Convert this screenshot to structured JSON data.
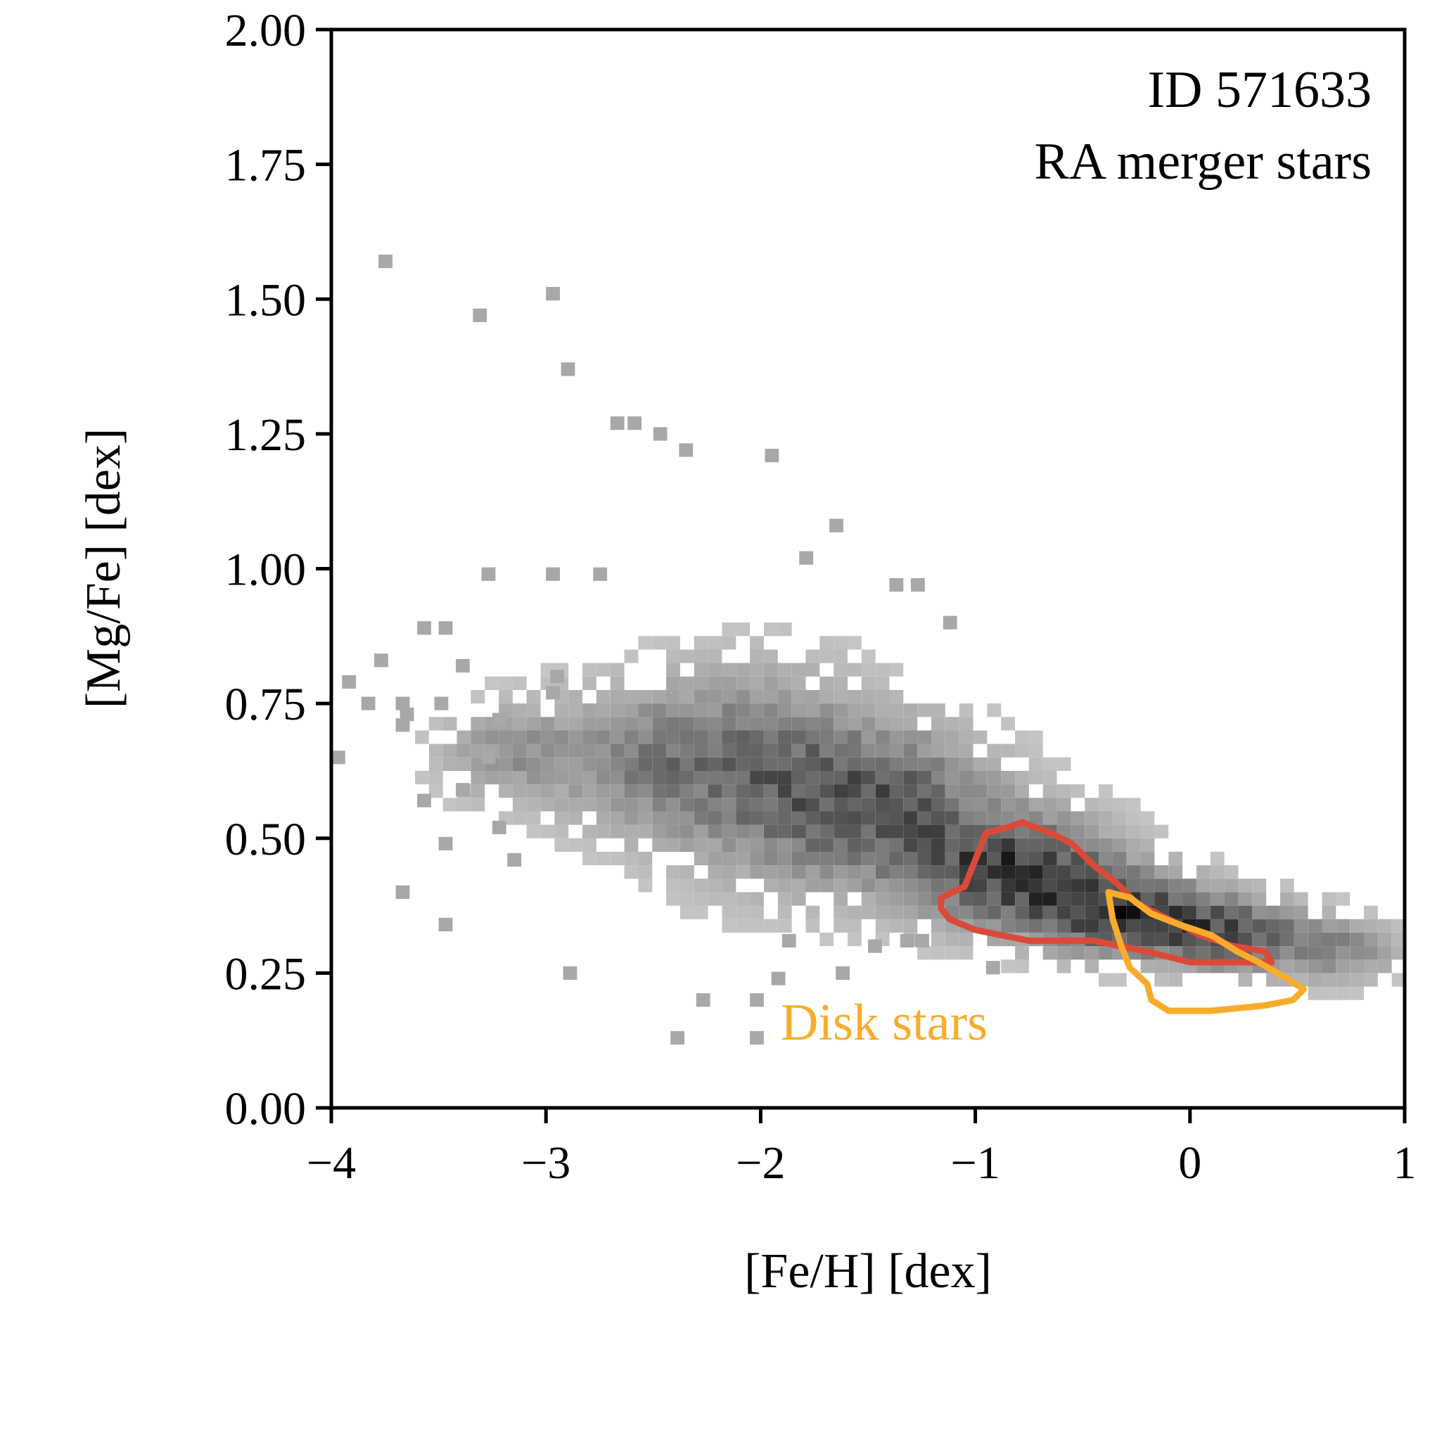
{
  "chart_data": {
    "type": "heatmap",
    "annotation_lines": [
      "ID 571633",
      "RA merger stars"
    ],
    "xlabel": "[Fe/H] [dex]",
    "ylabel": "[Mg/Fe] [dex]",
    "xlim": [
      -4,
      1
    ],
    "ylim": [
      0,
      2
    ],
    "x_ticks": [
      -4,
      -3,
      -2,
      -1,
      0,
      1
    ],
    "x_tick_labels": [
      "−4",
      "−3",
      "−2",
      "−1",
      "0",
      "1"
    ],
    "y_ticks": [
      0,
      0.25,
      0.5,
      0.75,
      1.0,
      1.25,
      1.5,
      1.75,
      2.0
    ],
    "y_tick_labels": [
      "0.00",
      "0.25",
      "0.50",
      "0.75",
      "1.00",
      "1.25",
      "1.50",
      "1.75",
      "2.00"
    ],
    "grid": false,
    "colormap": "greys",
    "density_ridge": [
      {
        "x": -3.2,
        "y": 0.66,
        "sx": 0.22,
        "sy": 0.06,
        "w": 0.35
      },
      {
        "x": -2.6,
        "y": 0.65,
        "sx": 0.32,
        "sy": 0.09,
        "w": 0.45
      },
      {
        "x": -2.0,
        "y": 0.62,
        "sx": 0.35,
        "sy": 0.13,
        "w": 0.6
      },
      {
        "x": -1.4,
        "y": 0.56,
        "sx": 0.35,
        "sy": 0.1,
        "w": 0.75
      },
      {
        "x": -0.8,
        "y": 0.44,
        "sx": 0.32,
        "sy": 0.07,
        "w": 1.0
      },
      {
        "x": -0.3,
        "y": 0.36,
        "sx": 0.28,
        "sy": 0.05,
        "w": 1.0
      },
      {
        "x": 0.2,
        "y": 0.32,
        "sx": 0.25,
        "sy": 0.045,
        "w": 0.8
      },
      {
        "x": 0.7,
        "y": 0.29,
        "sx": 0.2,
        "sy": 0.04,
        "w": 0.45
      }
    ],
    "scatter_bins": [
      [
        -3.78,
        1.57
      ],
      [
        -3.0,
        1.51
      ],
      [
        -3.34,
        1.47
      ],
      [
        -2.93,
        1.37
      ],
      [
        -2.7,
        1.27
      ],
      [
        -2.62,
        1.27
      ],
      [
        -2.5,
        1.25
      ],
      [
        -2.38,
        1.22
      ],
      [
        -1.98,
        1.21
      ],
      [
        -1.68,
        1.08
      ],
      [
        -1.82,
        1.02
      ],
      [
        -3.3,
        0.99
      ],
      [
        -3.0,
        0.99
      ],
      [
        -2.78,
        0.99
      ],
      [
        -3.6,
        0.89
      ],
      [
        -3.5,
        0.89
      ],
      [
        -3.8,
        0.83
      ],
      [
        -3.42,
        0.82
      ],
      [
        -3.95,
        0.79
      ],
      [
        -3.86,
        0.75
      ],
      [
        -3.7,
        0.75
      ],
      [
        -3.52,
        0.75
      ],
      [
        -3.68,
        0.73
      ],
      [
        -3.7,
        0.71
      ],
      [
        -3.25,
        0.72
      ],
      [
        -2.98,
        0.8
      ],
      [
        -3.0,
        0.77
      ],
      [
        -4.0,
        0.65
      ],
      [
        -3.3,
        0.65
      ],
      [
        -3.42,
        0.59
      ],
      [
        -3.6,
        0.57
      ],
      [
        -3.7,
        0.4
      ],
      [
        -3.5,
        0.49
      ],
      [
        -3.25,
        0.52
      ],
      [
        -3.18,
        0.46
      ],
      [
        -3.5,
        0.34
      ],
      [
        -2.92,
        0.25
      ],
      [
        -2.3,
        0.2
      ],
      [
        -2.05,
        0.2
      ],
      [
        -2.42,
        0.13
      ],
      [
        -2.05,
        0.13
      ],
      [
        -1.65,
        0.25
      ],
      [
        -1.95,
        0.24
      ],
      [
        -0.95,
        0.26
      ],
      [
        -1.35,
        0.31
      ],
      [
        -1.28,
        0.31
      ],
      [
        -1.9,
        0.31
      ],
      [
        -1.5,
        0.3
      ],
      [
        -1.15,
        0.9
      ],
      [
        -1.4,
        0.97
      ],
      [
        -1.3,
        0.97
      ]
    ]
  },
  "legend": {
    "disk_label": "Disk stars"
  },
  "colors": {
    "merger_contour": "#d94b38",
    "disk_contour": "#f9ac2c",
    "axis": "#000000"
  }
}
